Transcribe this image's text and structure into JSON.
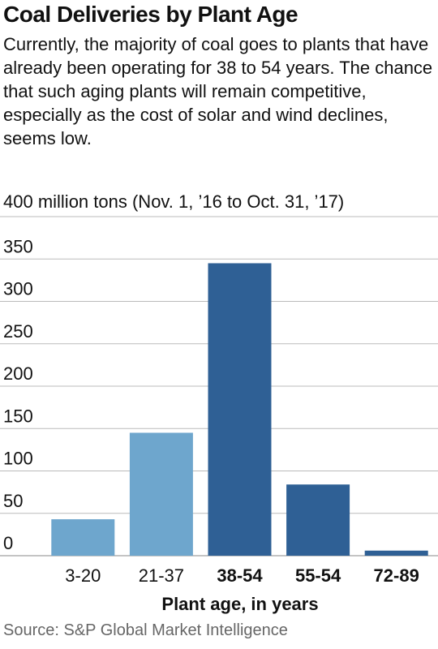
{
  "header": {
    "title": "Coal Deliveries by Plant Age",
    "subtitle": "Currently, the majority of coal goes to plants that have already been operating for 38 to 54 years. The chance that such aging plants will remain competitive, especially as the cost of solar and wind declines, seems low."
  },
  "chart_data": {
    "type": "bar",
    "title": "Coal Deliveries by Plant Age",
    "ylabel": "400 million tons (Nov. 1, ’16 to Oct. 31, ’17)",
    "xlabel": "Plant age, in years",
    "categories": [
      "3-20",
      "21-37",
      "38-54",
      "55-54",
      "72-89"
    ],
    "values": [
      43,
      145,
      345,
      84,
      6
    ],
    "highlighted_categories": [
      "38-54",
      "55-54",
      "72-89"
    ],
    "ylim": [
      0,
      400
    ],
    "yticks": [
      0,
      50,
      100,
      150,
      200,
      250,
      300,
      350
    ],
    "grid": true,
    "colors": {
      "light": "#6ea6cd",
      "dark": "#2f6095",
      "grid": "#bbbbbb",
      "text": "#111111"
    }
  },
  "footer": {
    "source": "Source: S&P Global Market Intelligence"
  }
}
